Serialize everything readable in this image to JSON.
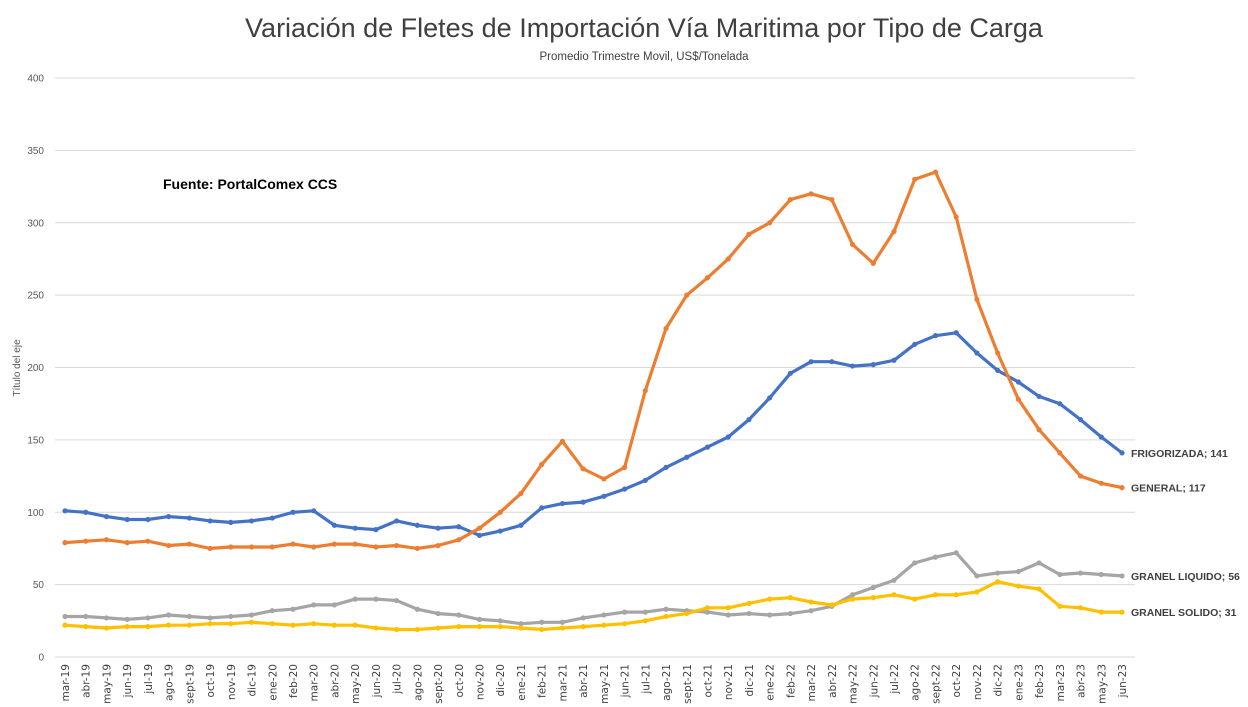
{
  "chart_data": {
    "type": "line",
    "title": "Variación de Fletes de Importación Vía Maritima por Tipo de Carga",
    "subtitle": "Promedio Trimestre Movil, US$/Tonelada",
    "xlabel": "",
    "ylabel": "Título del eje",
    "ylim": [
      0,
      400
    ],
    "yticks": [
      0,
      50,
      100,
      150,
      200,
      250,
      300,
      350,
      400
    ],
    "grid": true,
    "legend": "none (end-of-line data labels)",
    "annotation": "Fuente: PortalComex CCS",
    "categories": [
      "mar-19",
      "abr-19",
      "may-19",
      "jun-19",
      "jul-19",
      "ago-19",
      "sept-19",
      "oct-19",
      "nov-19",
      "dic-19",
      "ene-20",
      "feb-20",
      "mar-20",
      "abr-20",
      "may-20",
      "jun-20",
      "jul-20",
      "ago-20",
      "sept-20",
      "oct-20",
      "nov-20",
      "dic-20",
      "ene-21",
      "feb-21",
      "mar-21",
      "abr-21",
      "may-21",
      "jun-21",
      "jul-21",
      "ago-21",
      "sept-21",
      "oct-21",
      "nov-21",
      "dic-21",
      "ene-22",
      "feb-22",
      "mar-22",
      "abr-22",
      "may-22",
      "jun-22",
      "jul-22",
      "ago-22",
      "sept-22",
      "oct-22",
      "nov-22",
      "dic-22",
      "ene-23",
      "feb-23",
      "mar-23",
      "abr-23",
      "may-23",
      "jun-23"
    ],
    "series": [
      {
        "name": "FRIGORIZADA",
        "color": "#4472c4",
        "end_label": "FRIGORIZADA; 141",
        "values": [
          101,
          100,
          97,
          95,
          95,
          97,
          96,
          94,
          93,
          94,
          96,
          100,
          101,
          91,
          89,
          88,
          94,
          91,
          89,
          90,
          84,
          87,
          91,
          103,
          106,
          107,
          111,
          116,
          122,
          131,
          138,
          145,
          152,
          164,
          179,
          196,
          204,
          204,
          201,
          202,
          205,
          216,
          222,
          224,
          210,
          198,
          190,
          180,
          175,
          164,
          152,
          141
        ]
      },
      {
        "name": "GENERAL",
        "color": "#ed7d31",
        "end_label": "GENERAL; 117",
        "values": [
          79,
          80,
          81,
          79,
          80,
          77,
          78,
          75,
          76,
          76,
          76,
          78,
          76,
          78,
          78,
          76,
          77,
          75,
          77,
          81,
          89,
          100,
          113,
          133,
          149,
          130,
          123,
          131,
          184,
          227,
          250,
          262,
          275,
          292,
          300,
          316,
          320,
          316,
          285,
          272,
          294,
          330,
          335,
          304,
          247,
          210,
          178,
          157,
          141,
          125,
          120,
          117
        ]
      },
      {
        "name": "GRANEL LIQUIDO",
        "color": "#a5a5a5",
        "end_label": "GRANEL LIQUIDO; 56",
        "values": [
          28,
          28,
          27,
          26,
          27,
          29,
          28,
          27,
          28,
          29,
          32,
          33,
          36,
          36,
          40,
          40,
          39,
          33,
          30,
          29,
          26,
          25,
          23,
          24,
          24,
          27,
          29,
          31,
          31,
          33,
          32,
          31,
          29,
          30,
          29,
          30,
          32,
          35,
          43,
          48,
          53,
          65,
          69,
          72,
          56,
          58,
          59,
          65,
          57,
          58,
          57,
          56
        ]
      },
      {
        "name": "GRANEL SOLIDO",
        "color": "#ffc000",
        "end_label": "GRANEL SOLIDO; 31",
        "values": [
          22,
          21,
          20,
          21,
          21,
          22,
          22,
          23,
          23,
          24,
          23,
          22,
          23,
          22,
          22,
          20,
          19,
          19,
          20,
          21,
          21,
          21,
          20,
          19,
          20,
          21,
          22,
          23,
          25,
          28,
          30,
          34,
          34,
          37,
          40,
          41,
          38,
          36,
          40,
          41,
          43,
          40,
          43,
          43,
          45,
          52,
          49,
          47,
          35,
          34,
          31,
          31
        ]
      }
    ]
  }
}
